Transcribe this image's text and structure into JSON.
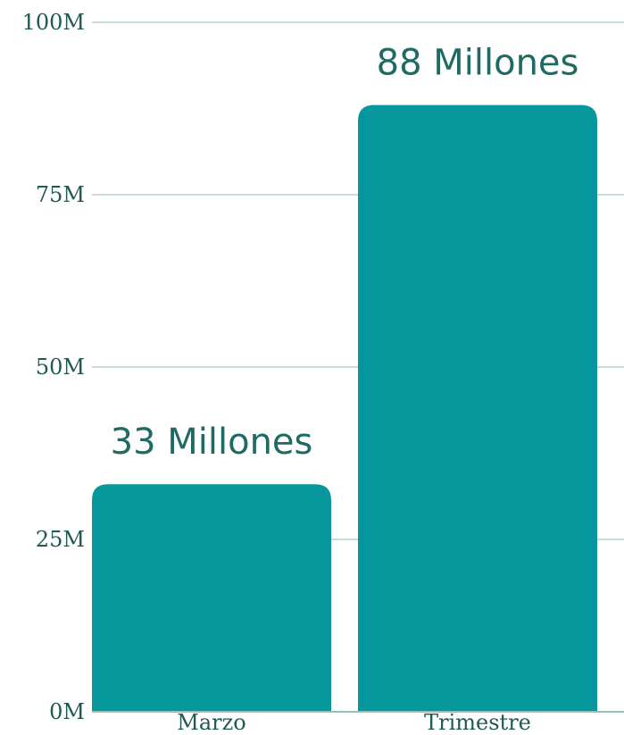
{
  "chart_data": {
    "type": "bar",
    "categories": [
      "Marzo",
      "Trimestre"
    ],
    "values": [
      33,
      88
    ],
    "data_labels": [
      "33 Millones",
      "88 Millones"
    ],
    "y_ticks": [
      {
        "value": 0,
        "label": "0M"
      },
      {
        "value": 25,
        "label": "25M"
      },
      {
        "value": 50,
        "label": "50M"
      },
      {
        "value": 75,
        "label": "75M"
      },
      {
        "value": 100,
        "label": "100M"
      }
    ],
    "ylim": [
      0,
      100
    ],
    "title": "",
    "xlabel": "",
    "ylabel": "",
    "grid": true,
    "legend": "none",
    "colors": {
      "bar": "#05979b",
      "grid": "#c5ded6",
      "text": "#1f5a52",
      "axis": "#8fc3b5"
    }
  }
}
